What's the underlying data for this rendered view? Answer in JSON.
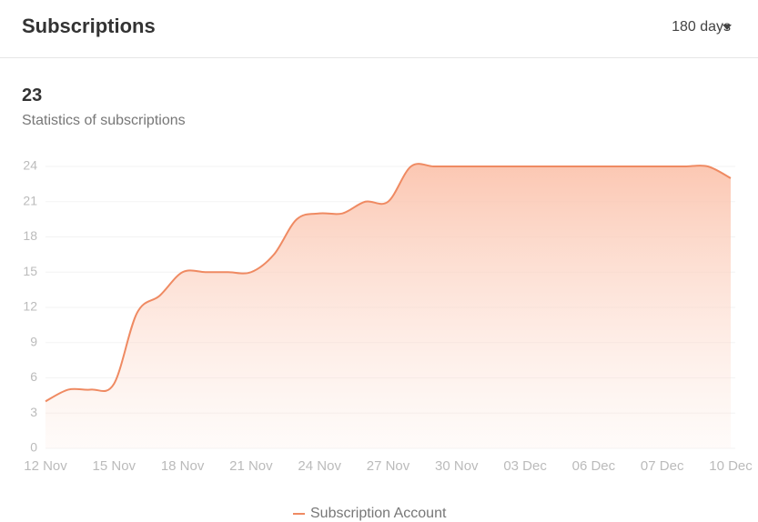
{
  "header": {
    "title": "Subscriptions",
    "period": "180 days"
  },
  "summary": {
    "value": 23,
    "label": "Statistics of subscriptions"
  },
  "chart_data": {
    "type": "line",
    "categories": [
      "12 Nov",
      null,
      null,
      "15 Nov",
      null,
      null,
      "18 Nov",
      null,
      null,
      "21 Nov",
      null,
      null,
      "24 Nov",
      null,
      null,
      "27 Nov",
      null,
      null,
      "30 Nov",
      null,
      null,
      "03 Dec",
      null,
      null,
      "06 Dec",
      null,
      null,
      "07 Dec",
      null,
      null,
      "10 Dec"
    ],
    "series": [
      {
        "name": "Subscription Account",
        "color": "#ef8a62",
        "values": [
          4,
          5,
          5,
          5.5,
          11.5,
          13,
          15,
          15,
          15,
          15,
          16.5,
          19.5,
          20,
          20,
          21,
          21,
          24,
          24,
          24,
          24,
          24,
          24,
          24,
          24,
          24,
          24,
          24,
          24,
          24,
          24,
          23
        ]
      }
    ],
    "ylim": [
      0,
      24
    ],
    "yticks": [
      0,
      3,
      6,
      9,
      12,
      15,
      18,
      21,
      24
    ],
    "grid": true,
    "legend": "bottom"
  }
}
